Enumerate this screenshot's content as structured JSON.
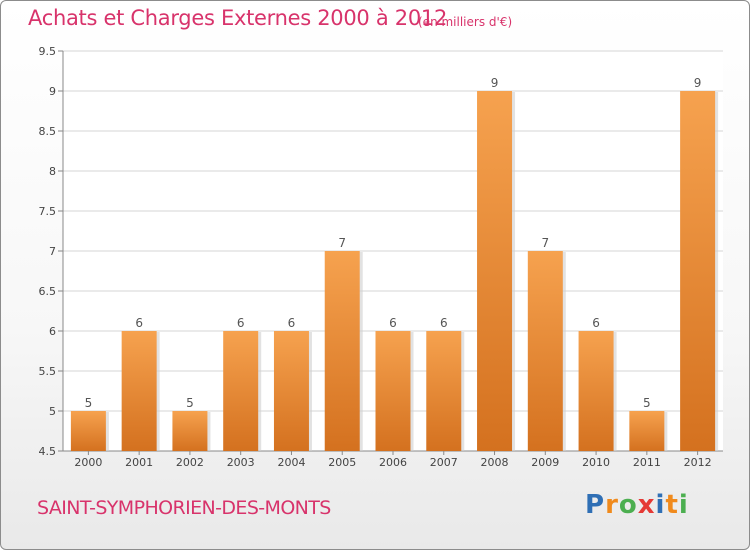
{
  "header": {
    "title": "Achats et Charges Externes 2000 à 2012",
    "subtitle": "(en milliers d'€)"
  },
  "footer": {
    "commune": "SAINT-SYMPHORIEN-DES-MONTS",
    "logo_letters": [
      "P",
      "r",
      "o",
      "x",
      "i",
      "t",
      "i"
    ],
    "logo_colors": [
      "#2f6fb5",
      "#f08a1c",
      "#4caf50",
      "#e53935",
      "#2f6fb5",
      "#f08a1c",
      "#4caf50"
    ]
  },
  "colors": {
    "bar_top": "#f6a24f",
    "bar_bottom": "#d4711f",
    "grid": "#d6d6d6",
    "accent": "#d8336b"
  },
  "chart_data": {
    "type": "bar",
    "title": "Achats et Charges Externes 2000 à 2012",
    "subtitle": "(en milliers d'€)",
    "categories": [
      "2000",
      "2001",
      "2002",
      "2003",
      "2004",
      "2005",
      "2006",
      "2007",
      "2008",
      "2009",
      "2010",
      "2011",
      "2012"
    ],
    "values": [
      5,
      6,
      5,
      6,
      6,
      7,
      6,
      6,
      9,
      7,
      6,
      5,
      9
    ],
    "data_labels": [
      "5",
      "6",
      "5",
      "6",
      "6",
      "7",
      "6",
      "6",
      "9",
      "7",
      "6",
      "5",
      "9"
    ],
    "yticks": [
      "4.5",
      "5",
      "5.5",
      "6",
      "6.5",
      "7",
      "7.5",
      "8",
      "8.5",
      "9",
      "9.5"
    ],
    "ylim": [
      4.5,
      9.5
    ],
    "grid": true,
    "xlabel": "",
    "ylabel": ""
  }
}
